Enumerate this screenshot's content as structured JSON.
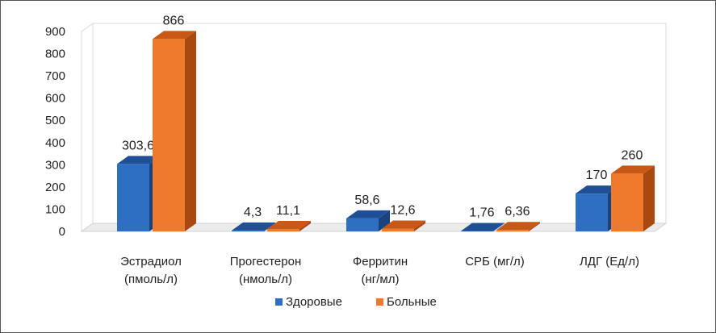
{
  "chart_data": {
    "type": "bar",
    "categories": [
      [
        "Эстрадиол",
        "(пмоль/л)"
      ],
      [
        "Прогестерон",
        "(нмоль/л)"
      ],
      [
        "Ферритин",
        "(нг/мл)"
      ],
      [
        "СРБ (мг/л)"
      ],
      [
        "ЛДГ (Ед/л)"
      ]
    ],
    "series": [
      {
        "name": "Здоровые",
        "values": [
          303.6,
          4.3,
          58.6,
          1.76,
          170
        ],
        "labels": [
          "303,6",
          "4,3",
          "58,6",
          "1,76",
          "170"
        ]
      },
      {
        "name": "Больные",
        "values": [
          866,
          11.1,
          12.6,
          6.36,
          260
        ],
        "labels": [
          "866",
          "11,1",
          "12,6",
          "6,36",
          "260"
        ]
      }
    ],
    "ylim": [
      0,
      900
    ],
    "yticks": [
      0,
      100,
      200,
      300,
      400,
      500,
      600,
      700,
      800,
      900
    ],
    "grid": false,
    "legend": "bottom",
    "colors": {
      "Здоровые": {
        "front": "#2e6fc4",
        "top": "#1f4f95",
        "side": "#1a427c"
      },
      "Больные": {
        "front": "#f07a2c",
        "top": "#c85814",
        "side": "#a9480f"
      }
    }
  }
}
